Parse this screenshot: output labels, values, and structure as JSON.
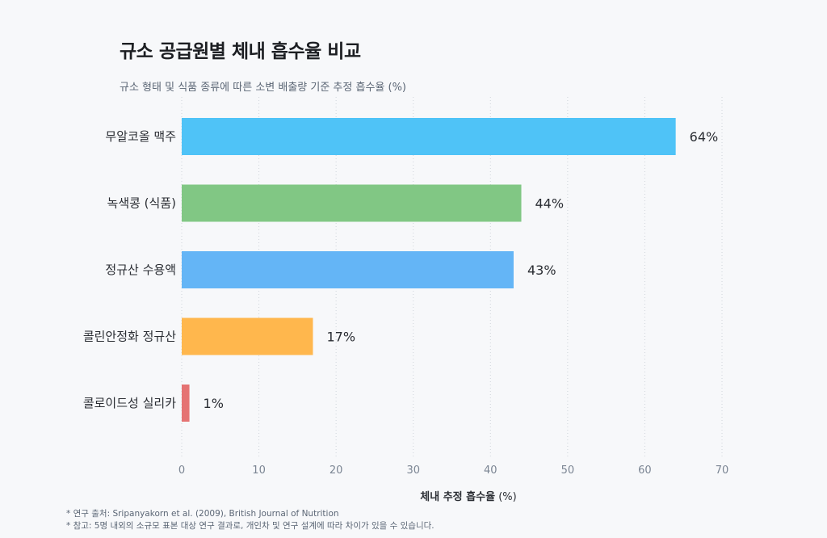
{
  "chart_data": {
    "type": "bar",
    "orientation": "horizontal",
    "title": "규소 공급원별 체내 흡수율 비교",
    "subtitle": "규소 형태 및 식품 종류에 따른 소변 배출량 기준 추정 흡수율 (%)",
    "xlabel_bold": "체내 추정 흡수율",
    "xlabel_unit": " (%)",
    "xlim": [
      0,
      70
    ],
    "xticks": [
      0,
      10,
      20,
      30,
      40,
      50,
      60,
      70
    ],
    "categories": [
      "무알코올 맥주",
      "녹색콩 (식품)",
      "정규산 수용액",
      "콜린안정화 정규산",
      "콜로이드성 실리카"
    ],
    "values": [
      64,
      44,
      43,
      17,
      1
    ],
    "value_labels": [
      "64%",
      "44%",
      "43%",
      "17%",
      "1%"
    ],
    "colors": [
      "#4fc3f7",
      "#81c784",
      "#64b5f6",
      "#ffb74d",
      "#e57373"
    ],
    "grid": "vertical-dotted",
    "legend": "none"
  },
  "footnotes": [
    "* 연구 출처: Sripanyakorn et al. (2009), British Journal of Nutrition",
    "* 참고: 5명 내외의 소규모 표본 대상 연구 결과로, 개인차 및 연구 설계에 따라 차이가 있을 수 있습니다."
  ]
}
